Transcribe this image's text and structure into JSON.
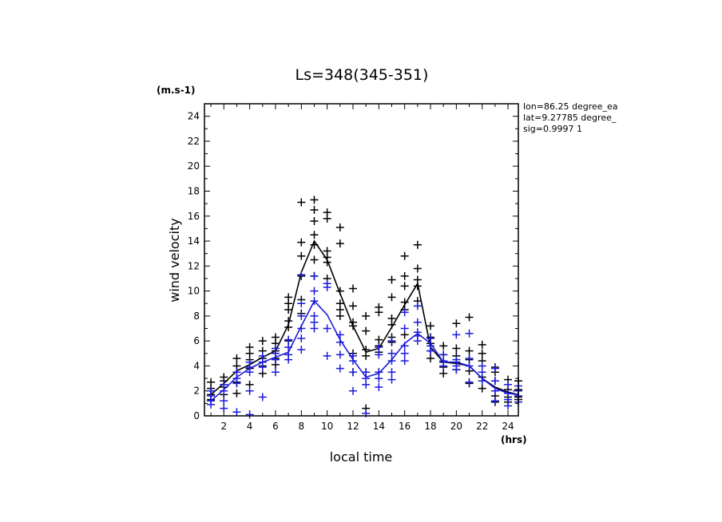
{
  "chart_data": {
    "type": "scatter",
    "title": "Ls=348(345-351)",
    "xlabel": "local time",
    "ylabel": "wind velocity",
    "x_unit": "(hrs)",
    "y_unit": "(m.s-1)",
    "xlim": [
      0.5,
      24.8
    ],
    "ylim": [
      0,
      25
    ],
    "xticks": [
      2,
      4,
      6,
      8,
      10,
      12,
      14,
      16,
      18,
      20,
      22,
      24
    ],
    "yticks": [
      0,
      2,
      4,
      6,
      8,
      10,
      12,
      14,
      16,
      18,
      20,
      22,
      24
    ],
    "info_lines": [
      "lon=86.25 degree_ea",
      "lat=9.27785 degree_",
      "sig=0.9997 1"
    ],
    "colors": {
      "series1": "#000000",
      "series2": "#1a1adc",
      "axes": "#000000"
    },
    "series": [
      {
        "color": "#000000",
        "mean_x": [
          1,
          2,
          3,
          4,
          5,
          6,
          7,
          8,
          9,
          10,
          11,
          12,
          13,
          14,
          15,
          16,
          17,
          18,
          19,
          20,
          21,
          22,
          23,
          24,
          25
        ],
        "mean_y": [
          1.7,
          2.6,
          3.6,
          4.1,
          4.7,
          5.2,
          7.3,
          11.5,
          14.0,
          12.5,
          9.8,
          7.2,
          5.1,
          5.4,
          7.1,
          8.9,
          10.6,
          5.5,
          4.3,
          4.2,
          4.0,
          3.0,
          2.3,
          1.9,
          1.7
        ],
        "scatter": [
          [
            1,
            2.7
          ],
          [
            1,
            2.0
          ],
          [
            1,
            1.7
          ],
          [
            1,
            1.3
          ],
          [
            1,
            2.2
          ],
          [
            2,
            3.1
          ],
          [
            2,
            2.8
          ],
          [
            2,
            2.3
          ],
          [
            2,
            1.7
          ],
          [
            2,
            1.2
          ],
          [
            3,
            4.6
          ],
          [
            3,
            4.0
          ],
          [
            3,
            3.5
          ],
          [
            3,
            2.7
          ],
          [
            3,
            1.8
          ],
          [
            4,
            5.5
          ],
          [
            4,
            5.0
          ],
          [
            4,
            4.5
          ],
          [
            4,
            3.8
          ],
          [
            4,
            2.5
          ],
          [
            5,
            6.0
          ],
          [
            5,
            5.2
          ],
          [
            5,
            4.6
          ],
          [
            5,
            4.0
          ],
          [
            5,
            3.4
          ],
          [
            6,
            6.3
          ],
          [
            6,
            5.8
          ],
          [
            6,
            5.2
          ],
          [
            6,
            4.6
          ],
          [
            6,
            4.1
          ],
          [
            7,
            9.5
          ],
          [
            7,
            9.0
          ],
          [
            7,
            8.5
          ],
          [
            7,
            7.6
          ],
          [
            7,
            7.1
          ],
          [
            7,
            6.0
          ],
          [
            8,
            17.1
          ],
          [
            8,
            13.9
          ],
          [
            8,
            12.8
          ],
          [
            8,
            11.2
          ],
          [
            8,
            9.3
          ],
          [
            8,
            8.2
          ],
          [
            9,
            17.3
          ],
          [
            9,
            16.5
          ],
          [
            9,
            15.6
          ],
          [
            9,
            14.5
          ],
          [
            9,
            13.7
          ],
          [
            9,
            12.5
          ],
          [
            9,
            11.2
          ],
          [
            10,
            16.3
          ],
          [
            10,
            15.8
          ],
          [
            10,
            13.2
          ],
          [
            10,
            12.7
          ],
          [
            10,
            12.3
          ],
          [
            10,
            11.0
          ],
          [
            11,
            15.1
          ],
          [
            11,
            13.8
          ],
          [
            11,
            10.0
          ],
          [
            11,
            9.0
          ],
          [
            11,
            8.5
          ],
          [
            11,
            8.0
          ],
          [
            12,
            10.2
          ],
          [
            12,
            8.8
          ],
          [
            12,
            7.5
          ],
          [
            12,
            7.2
          ],
          [
            12,
            5.0
          ],
          [
            12,
            3.5
          ],
          [
            13,
            8.0
          ],
          [
            13,
            6.8
          ],
          [
            13,
            5.3
          ],
          [
            13,
            4.8
          ],
          [
            13,
            3.5
          ],
          [
            13,
            0.6
          ],
          [
            14,
            8.7
          ],
          [
            14,
            8.3
          ],
          [
            14,
            6.1
          ],
          [
            14,
            5.6
          ],
          [
            14,
            5.1
          ],
          [
            14,
            3.5
          ],
          [
            15,
            10.9
          ],
          [
            15,
            9.5
          ],
          [
            15,
            7.8
          ],
          [
            15,
            7.3
          ],
          [
            15,
            6.3
          ],
          [
            15,
            5.9
          ],
          [
            16,
            12.8
          ],
          [
            16,
            11.2
          ],
          [
            16,
            10.4
          ],
          [
            16,
            9.1
          ],
          [
            16,
            8.5
          ],
          [
            16,
            6.5
          ],
          [
            17,
            13.7
          ],
          [
            17,
            11.8
          ],
          [
            17,
            10.9
          ],
          [
            17,
            10.4
          ],
          [
            17,
            9.2
          ],
          [
            18,
            7.2
          ],
          [
            18,
            6.3
          ],
          [
            18,
            5.8
          ],
          [
            18,
            5.2
          ],
          [
            18,
            4.6
          ],
          [
            19,
            5.6
          ],
          [
            19,
            4.9
          ],
          [
            19,
            4.3
          ],
          [
            19,
            3.9
          ],
          [
            19,
            3.4
          ],
          [
            20,
            7.4
          ],
          [
            20,
            5.4
          ],
          [
            20,
            4.8
          ],
          [
            20,
            4.3
          ],
          [
            20,
            3.7
          ],
          [
            21,
            7.9
          ],
          [
            21,
            5.2
          ],
          [
            21,
            4.5
          ],
          [
            21,
            3.6
          ],
          [
            21,
            2.6
          ],
          [
            22,
            5.7
          ],
          [
            22,
            5.0
          ],
          [
            22,
            4.4
          ],
          [
            22,
            3.1
          ],
          [
            22,
            2.2
          ],
          [
            23,
            3.9
          ],
          [
            23,
            3.5
          ],
          [
            23,
            2.8
          ],
          [
            23,
            1.6
          ],
          [
            23,
            1.1
          ],
          [
            24,
            2.9
          ],
          [
            24,
            2.1
          ],
          [
            24,
            1.5
          ],
          [
            24,
            1.1
          ],
          [
            25,
            2.8
          ],
          [
            25,
            2.1
          ],
          [
            25,
            1.5
          ],
          [
            25,
            1.3
          ]
        ]
      },
      {
        "color": "#1a1adc",
        "mean_x": [
          1,
          2,
          3,
          4,
          5,
          6,
          7,
          8,
          9,
          10,
          11,
          12,
          13,
          14,
          15,
          16,
          17,
          18,
          19,
          20,
          21,
          22,
          23,
          24,
          25
        ],
        "mean_y": [
          1.2,
          2.1,
          3.1,
          3.8,
          4.3,
          4.7,
          5.1,
          7.2,
          9.2,
          8.1,
          6.1,
          4.5,
          3.1,
          3.4,
          4.5,
          5.8,
          6.6,
          5.8,
          4.3,
          4.3,
          4.0,
          3.0,
          2.2,
          1.8,
          1.7
        ],
        "scatter": [
          [
            1,
            1.6
          ],
          [
            1,
            1.2
          ],
          [
            1,
            0.9
          ],
          [
            1,
            2.0
          ],
          [
            2,
            2.5
          ],
          [
            2,
            2.0
          ],
          [
            2,
            1.2
          ],
          [
            2,
            0.6
          ],
          [
            3,
            3.5
          ],
          [
            3,
            3.0
          ],
          [
            3,
            2.6
          ],
          [
            3,
            0.3
          ],
          [
            4,
            4.3
          ],
          [
            4,
            3.9
          ],
          [
            4,
            3.5
          ],
          [
            4,
            2.0
          ],
          [
            4,
            0.1
          ],
          [
            5,
            4.8
          ],
          [
            5,
            4.3
          ],
          [
            5,
            3.9
          ],
          [
            5,
            1.5
          ],
          [
            6,
            5.4
          ],
          [
            6,
            5.0
          ],
          [
            6,
            4.5
          ],
          [
            6,
            3.5
          ],
          [
            7,
            6.1
          ],
          [
            7,
            5.5
          ],
          [
            7,
            4.9
          ],
          [
            7,
            4.5
          ],
          [
            8,
            11.3
          ],
          [
            8,
            9.0
          ],
          [
            8,
            8.0
          ],
          [
            8,
            7.0
          ],
          [
            8,
            6.2
          ],
          [
            8,
            5.3
          ],
          [
            9,
            11.2
          ],
          [
            9,
            10.0
          ],
          [
            9,
            9.2
          ],
          [
            9,
            8.0
          ],
          [
            9,
            7.5
          ],
          [
            9,
            7.0
          ],
          [
            10,
            10.6
          ],
          [
            10,
            10.3
          ],
          [
            10,
            7.0
          ],
          [
            10,
            4.8
          ],
          [
            11,
            6.5
          ],
          [
            11,
            5.9
          ],
          [
            11,
            4.9
          ],
          [
            11,
            3.8
          ],
          [
            12,
            4.8
          ],
          [
            12,
            4.4
          ],
          [
            12,
            3.5
          ],
          [
            12,
            2.0
          ],
          [
            13,
            3.5
          ],
          [
            13,
            3.0
          ],
          [
            13,
            2.5
          ],
          [
            13,
            0.2
          ],
          [
            14,
            5.5
          ],
          [
            14,
            4.9
          ],
          [
            14,
            3.5
          ],
          [
            14,
            3.0
          ],
          [
            14,
            2.3
          ],
          [
            15,
            6.0
          ],
          [
            15,
            5.0
          ],
          [
            15,
            4.4
          ],
          [
            15,
            3.5
          ],
          [
            15,
            2.9
          ],
          [
            16,
            8.3
          ],
          [
            16,
            7.0
          ],
          [
            16,
            5.6
          ],
          [
            16,
            5.0
          ],
          [
            16,
            4.4
          ],
          [
            17,
            8.8
          ],
          [
            17,
            7.5
          ],
          [
            17,
            6.7
          ],
          [
            17,
            6.4
          ],
          [
            17,
            6.0
          ],
          [
            18,
            6.2
          ],
          [
            18,
            5.6
          ],
          [
            18,
            5.2
          ],
          [
            19,
            4.9
          ],
          [
            19,
            4.4
          ],
          [
            19,
            4.0
          ],
          [
            20,
            6.5
          ],
          [
            20,
            4.5
          ],
          [
            20,
            4.0
          ],
          [
            20,
            3.7
          ],
          [
            21,
            6.6
          ],
          [
            21,
            4.6
          ],
          [
            21,
            4.0
          ],
          [
            21,
            2.7
          ],
          [
            22,
            4.0
          ],
          [
            22,
            3.5
          ],
          [
            22,
            2.8
          ],
          [
            23,
            3.8
          ],
          [
            23,
            2.8
          ],
          [
            23,
            2.0
          ],
          [
            23,
            1.2
          ],
          [
            24,
            2.5
          ],
          [
            24,
            1.8
          ],
          [
            24,
            1.3
          ],
          [
            24,
            0.8
          ],
          [
            25,
            2.4
          ],
          [
            25,
            2.0
          ],
          [
            25,
            1.6
          ],
          [
            25,
            1.1
          ]
        ]
      }
    ]
  }
}
